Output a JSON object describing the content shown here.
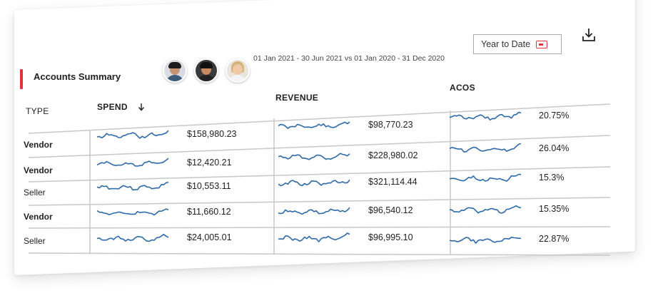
{
  "header": {
    "title": "Accounts Summary",
    "date_range": "01 Jan 2021 - 30 Jun 2021 vs 01 Jan 2020 - 31 Dec 2020",
    "period_select": "Year to Date",
    "accent_color": "#e2343a"
  },
  "avatars": [
    "avatar-1",
    "avatar-2",
    "avatar-3"
  ],
  "columns": {
    "type": "TYPE",
    "spend": "SPEND",
    "revenue": "REVENUE",
    "acos": "ACOS"
  },
  "icons": {
    "sort": "arrow-down-icon",
    "calendar": "calendar-icon",
    "download": "download-icon"
  },
  "sparkline_color": "#2e6aa8",
  "rows": [
    {
      "type": "Vendor",
      "spend": "$158,980.23",
      "revenue": "$98,770.23",
      "acos": "20.75%"
    },
    {
      "type": "Vendor",
      "spend": "$12,420.21",
      "revenue": "$228,980.02",
      "acos": "26.04%"
    },
    {
      "type": "Seller",
      "spend": "$10,553.11",
      "revenue": "$321,114.44",
      "acos": "15.3%"
    },
    {
      "type": "Vendor",
      "spend": "$11,660.12",
      "revenue": "$96,540.12",
      "acos": "15.35%"
    },
    {
      "type": "Seller",
      "spend": "$24,005.01",
      "revenue": "$96,995.10",
      "acos": "22.87%"
    }
  ]
}
